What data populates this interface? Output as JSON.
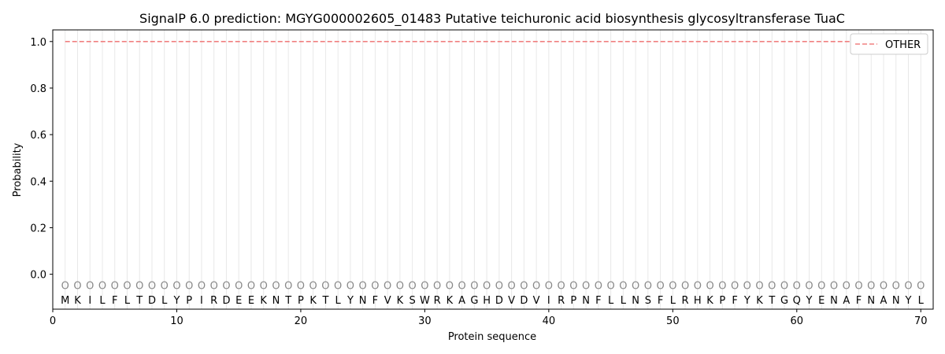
{
  "chart_data": {
    "type": "line",
    "title": "SignalP 6.0 prediction: MGYG000002605_01483 Putative teichuronic acid biosynthesis glycosyltransferase TuaC",
    "xlabel": "Protein sequence",
    "ylabel": "Probability",
    "xlim": [
      0,
      71
    ],
    "ylim": [
      -0.15,
      1.05
    ],
    "x_ticks": [
      0,
      10,
      20,
      30,
      40,
      50,
      60,
      70
    ],
    "y_ticks": [
      0.0,
      0.2,
      0.4,
      0.6,
      0.8,
      1.0
    ],
    "x_tick_labels": [
      "0",
      "10",
      "20",
      "30",
      "40",
      "50",
      "60",
      "70"
    ],
    "y_tick_labels": [
      "0.0",
      "0.2",
      "0.4",
      "0.6",
      "0.8",
      "1.0"
    ],
    "sequence": [
      "M",
      "K",
      "I",
      "L",
      "F",
      "L",
      "T",
      "D",
      "L",
      "Y",
      "P",
      "I",
      "R",
      "D",
      "E",
      "E",
      "K",
      "N",
      "T",
      "P",
      "K",
      "T",
      "L",
      "Y",
      "N",
      "F",
      "V",
      "K",
      "S",
      "W",
      "R",
      "K",
      "A",
      "G",
      "H",
      "D",
      "V",
      "D",
      "V",
      "I",
      "R",
      "P",
      "N",
      "F",
      "L",
      "L",
      "N",
      "S",
      "F",
      "L",
      "R",
      "H",
      "K",
      "P",
      "F",
      "Y",
      "K",
      "T",
      "G",
      "Q",
      "Y",
      "E",
      "N",
      "A",
      "F",
      "N",
      "A",
      "N",
      "Y",
      "L"
    ],
    "region_labels": [
      "O",
      "O",
      "O",
      "O",
      "O",
      "O",
      "O",
      "O",
      "O",
      "O",
      "O",
      "O",
      "O",
      "O",
      "O",
      "O",
      "O",
      "O",
      "O",
      "O",
      "O",
      "O",
      "O",
      "O",
      "O",
      "O",
      "O",
      "O",
      "O",
      "O",
      "O",
      "O",
      "O",
      "O",
      "O",
      "O",
      "O",
      "O",
      "O",
      "O",
      "O",
      "O",
      "O",
      "O",
      "O",
      "O",
      "O",
      "O",
      "O",
      "O",
      "O",
      "O",
      "O",
      "O",
      "O",
      "O",
      "O",
      "O",
      "O",
      "O",
      "O",
      "O",
      "O",
      "O",
      "O",
      "O",
      "O",
      "O",
      "O",
      "O"
    ],
    "series": [
      {
        "name": "OTHER",
        "color": "#f08080",
        "style": "dashed",
        "x_start": 1,
        "x_end": 70,
        "value": 1.0
      }
    ],
    "legend": {
      "position": "top-right"
    },
    "grid": {
      "vertical_per_residue": true,
      "color": "#e8e8e8"
    }
  }
}
